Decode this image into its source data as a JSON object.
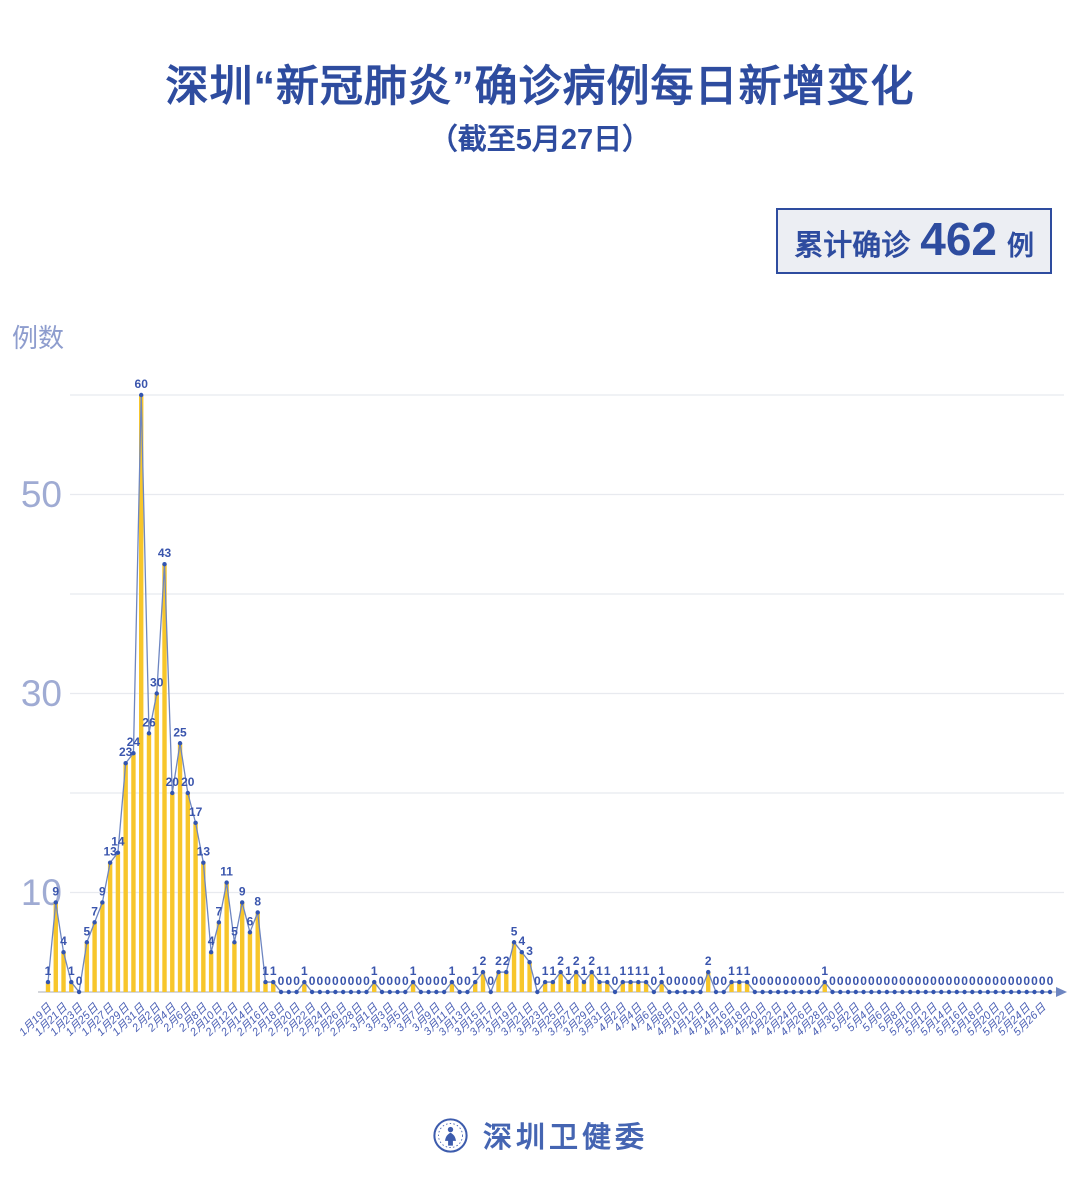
{
  "title": "深圳“新冠肺炎”确诊病例每日新增变化",
  "subtitle": "（截至5月27日）",
  "badge": {
    "prefix": "累计确诊",
    "value": "462",
    "suffix": "例"
  },
  "y_axis_unit": "例数",
  "footer": {
    "org_name": "深圳卫健委"
  },
  "colors": {
    "title_blue": "#2E4C9F",
    "bar_gold": "#F7C62B",
    "line_blue": "#6E86C1",
    "dot_blue": "#3355B0",
    "value_label_blue": "#3A55AD",
    "date_label_blue": "#4A5FB5",
    "y_label_gray": "#9FABD3",
    "grid_gray": "#E8EAEF",
    "axis_gray": "#C6C9CF",
    "badge_bg": "#ECEEF3"
  },
  "chart_data": {
    "type": "bar",
    "title": "深圳“新冠肺炎”确诊病例每日新增变化",
    "subtitle": "（截至5月27日）",
    "xlabel": "",
    "ylabel": "例数",
    "ylim": [
      0,
      62
    ],
    "y_gridlines": [
      10,
      20,
      30,
      40,
      50,
      60
    ],
    "y_tick_labels": [
      10,
      30,
      50
    ],
    "x_tick_every": 2,
    "grid": true,
    "legend_position": "none",
    "annotation_total": 462,
    "categories": [
      "1月19日",
      "1月20日",
      "1月21日",
      "1月22日",
      "1月23日",
      "1月24日",
      "1月25日",
      "1月26日",
      "1月27日",
      "1月28日",
      "1月29日",
      "1月30日",
      "1月31日",
      "2月1日",
      "2月2日",
      "2月3日",
      "2月4日",
      "2月5日",
      "2月6日",
      "2月7日",
      "2月8日",
      "2月9日",
      "2月10日",
      "2月11日",
      "2月12日",
      "2月13日",
      "2月14日",
      "2月15日",
      "2月16日",
      "2月17日",
      "2月18日",
      "2月19日",
      "2月20日",
      "2月21日",
      "2月22日",
      "2月23日",
      "2月24日",
      "2月25日",
      "2月26日",
      "2月27日",
      "2月28日",
      "2月29日",
      "3月1日",
      "3月2日",
      "3月3日",
      "3月4日",
      "3月5日",
      "3月6日",
      "3月7日",
      "3月8日",
      "3月9日",
      "3月10日",
      "3月11日",
      "3月12日",
      "3月13日",
      "3月14日",
      "3月15日",
      "3月16日",
      "3月17日",
      "3月18日",
      "3月19日",
      "3月20日",
      "3月21日",
      "3月22日",
      "3月23日",
      "3月24日",
      "3月25日",
      "3月26日",
      "3月27日",
      "3月28日",
      "3月29日",
      "3月30日",
      "3月31日",
      "4月1日",
      "4月2日",
      "4月3日",
      "4月4日",
      "4月5日",
      "4月6日",
      "4月7日",
      "4月8日",
      "4月9日",
      "4月10日",
      "4月11日",
      "4月12日",
      "4月13日",
      "4月14日",
      "4月15日",
      "4月16日",
      "4月17日",
      "4月18日",
      "4月19日",
      "4月20日",
      "4月21日",
      "4月22日",
      "4月23日",
      "4月24日",
      "4月25日",
      "4月26日",
      "4月27日",
      "4月28日",
      "4月29日",
      "4月30日",
      "5月1日",
      "5月2日",
      "5月3日",
      "5月4日",
      "5月5日",
      "5月6日",
      "5月7日",
      "5月8日",
      "5月9日",
      "5月10日",
      "5月11日",
      "5月12日",
      "5月13日",
      "5月14日",
      "5月15日",
      "5月16日",
      "5月17日",
      "5月18日",
      "5月19日",
      "5月20日",
      "5月21日",
      "5月22日",
      "5月23日",
      "5月24日",
      "5月25日",
      "5月26日",
      "5月27日"
    ],
    "values": [
      1,
      9,
      4,
      1,
      0,
      5,
      7,
      9,
      13,
      14,
      23,
      24,
      60,
      26,
      30,
      43,
      20,
      25,
      20,
      17,
      13,
      4,
      7,
      11,
      5,
      9,
      6,
      8,
      1,
      1,
      0,
      0,
      0,
      1,
      0,
      0,
      0,
      0,
      0,
      0,
      0,
      0,
      1,
      0,
      0,
      0,
      0,
      1,
      0,
      0,
      0,
      0,
      1,
      0,
      0,
      1,
      2,
      0,
      2,
      2,
      5,
      4,
      3,
      0,
      1,
      1,
      2,
      1,
      2,
      1,
      2,
      1,
      1,
      0,
      1,
      1,
      1,
      1,
      0,
      1,
      0,
      0,
      0,
      0,
      0,
      2,
      0,
      0,
      1,
      1,
      1,
      0,
      0,
      0,
      0,
      0,
      0,
      0,
      0,
      0,
      1,
      0,
      0,
      0,
      0,
      0,
      0,
      0,
      0,
      0,
      0,
      0,
      0,
      0,
      0,
      0,
      0,
      0,
      0,
      0,
      0,
      0,
      0,
      0,
      0,
      0,
      0,
      0,
      0,
      0
    ]
  }
}
